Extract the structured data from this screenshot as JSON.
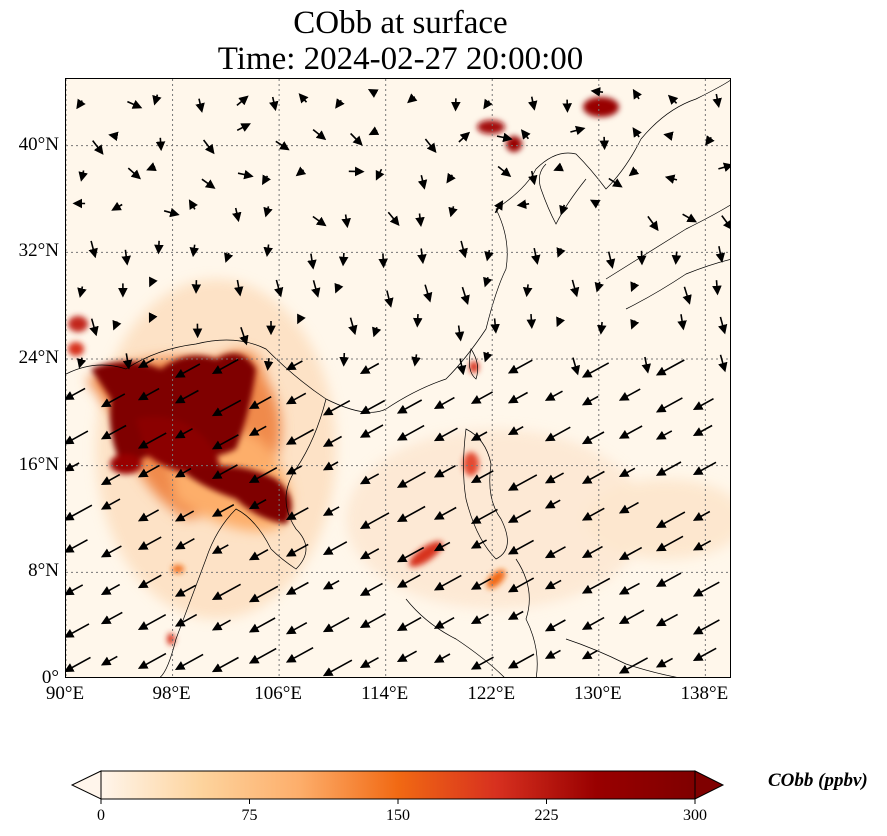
{
  "title_line1": "CObb at surface",
  "title_line2": "Time: 2024-02-27 20:00:00",
  "lat_ticks": [
    {
      "label": "0°",
      "value": 0
    },
    {
      "label": "8°N",
      "value": 8
    },
    {
      "label": "16°N",
      "value": 16
    },
    {
      "label": "24°N",
      "value": 24
    },
    {
      "label": "32°N",
      "value": 32
    },
    {
      "label": "40°N",
      "value": 40
    }
  ],
  "lon_ticks": [
    {
      "label": "90°E",
      "value": 90
    },
    {
      "label": "98°E",
      "value": 98
    },
    {
      "label": "106°E",
      "value": 106
    },
    {
      "label": "114°E",
      "value": 114
    },
    {
      "label": "122°E",
      "value": 122
    },
    {
      "label": "130°E",
      "value": 130
    },
    {
      "label": "138°E",
      "value": 138
    }
  ],
  "extent": {
    "lon_min": 90,
    "lon_max": 140,
    "lat_min": 0,
    "lat_max": 45
  },
  "colorbar": {
    "label": "CObb (ppbv)",
    "min": 0,
    "max": 300,
    "ticks": [
      "0",
      "75",
      "150",
      "225",
      "300"
    ],
    "colors": [
      "#fff5eb",
      "#fdd49e",
      "#fdae6b",
      "#f16913",
      "#d7301f",
      "#990000",
      "#7f0000"
    ]
  },
  "gridline_style": "dotted"
}
